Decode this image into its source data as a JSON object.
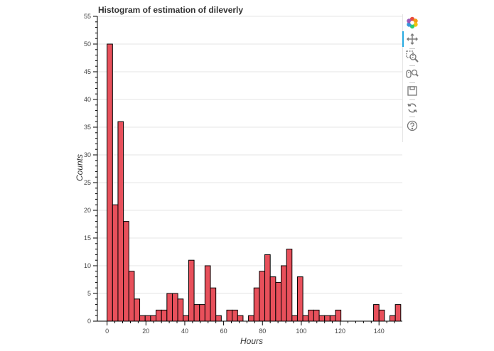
{
  "chart_data": {
    "type": "bar",
    "title": "Histogram of estimation of dileverly",
    "xlabel": "Hours",
    "ylabel": "Counts",
    "xlim": [
      -5,
      152
    ],
    "ylim": [
      0,
      55
    ],
    "bin_width": 2.8,
    "bin_start": 0,
    "values": [
      50,
      21,
      36,
      18,
      9,
      4,
      1,
      1,
      1,
      2,
      2,
      5,
      5,
      4,
      1,
      11,
      3,
      3,
      10,
      6,
      1,
      0,
      2,
      2,
      1,
      0,
      1,
      6,
      9,
      12,
      8,
      7,
      10,
      13,
      1,
      8,
      1,
      2,
      2,
      1,
      1,
      1,
      2,
      0,
      0,
      0,
      0,
      0,
      0,
      3,
      2,
      0,
      1,
      3
    ],
    "x_ticks": [
      0,
      20,
      40,
      60,
      80,
      100,
      120,
      140
    ],
    "y_ticks": [
      0,
      5,
      10,
      15,
      20,
      25,
      30,
      35,
      40,
      45,
      50,
      55
    ],
    "fill_color": "#e8505b",
    "line_color": "#000000",
    "grid_color": "#e5e5e5"
  },
  "toolbar": {
    "tools": [
      {
        "name": "bokeh-logo-icon"
      },
      {
        "name": "pan-tool-icon"
      },
      {
        "name": "box-zoom-tool-icon"
      },
      {
        "name": "wheel-zoom-tool-icon"
      },
      {
        "name": "save-tool-icon"
      },
      {
        "name": "reset-tool-icon"
      },
      {
        "name": "help-tool-icon"
      }
    ]
  }
}
